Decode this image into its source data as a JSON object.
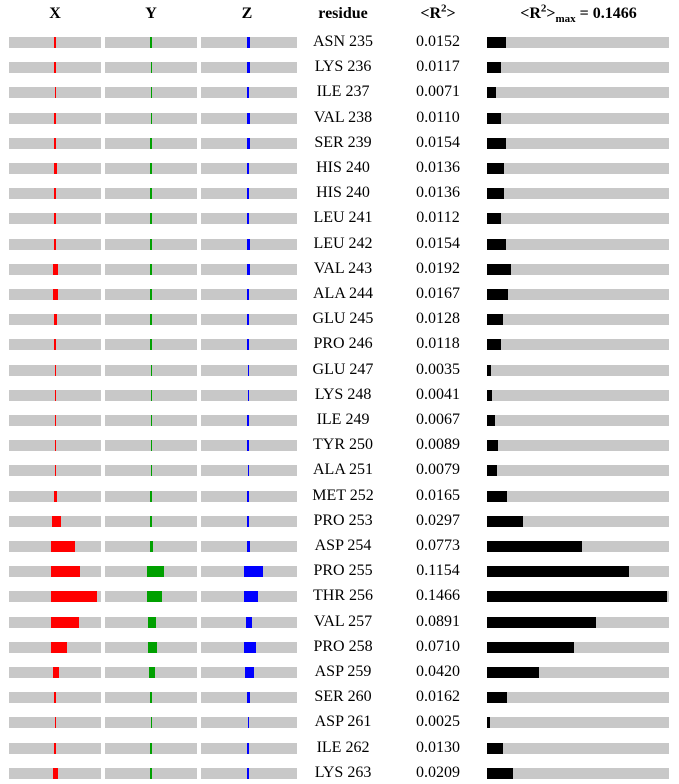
{
  "headers": {
    "x": "X",
    "y": "Y",
    "z": "Z",
    "residue": "residue",
    "r2_open": "<R",
    "r2_sup": "2",
    "r2_close": ">",
    "max_open": "<R",
    "max_sup": "2",
    "max_mid": ">",
    "max_sub": "max",
    "max_tail": " = 0.1466"
  },
  "colors": {
    "x": "#ff0000",
    "y": "#00a000",
    "z": "#0000ff",
    "r2": "#000000",
    "track": "#c8c8c8"
  },
  "chart_data": {
    "type": "bar",
    "r2_max": 0.1466,
    "component_max": 0.95,
    "rows": [
      {
        "residue": "ASN 235",
        "r2": "0.0152",
        "x": 0.03,
        "y": 0.03,
        "z": 0.07
      },
      {
        "residue": "LYS 236",
        "r2": "0.0117",
        "x": 0.03,
        "y": 0.02,
        "z": 0.05
      },
      {
        "residue": "ILE 237",
        "r2": "0.0071",
        "x": 0.02,
        "y": 0.02,
        "z": 0.04
      },
      {
        "residue": "VAL 238",
        "r2": "0.0110",
        "x": 0.03,
        "y": 0.02,
        "z": 0.05
      },
      {
        "residue": "SER 239",
        "r2": "0.0154",
        "x": 0.03,
        "y": 0.04,
        "z": 0.05
      },
      {
        "residue": "HIS 240",
        "r2": "0.0136",
        "x": 0.07,
        "y": 0.03,
        "z": 0.04
      },
      {
        "residue": "HIS 240",
        "r2": "0.0136",
        "x": 0.04,
        "y": 0.03,
        "z": 0.04
      },
      {
        "residue": "LEU 241",
        "r2": "0.0112",
        "x": 0.04,
        "y": 0.03,
        "z": 0.03
      },
      {
        "residue": "LEU 242",
        "r2": "0.0154",
        "x": 0.04,
        "y": 0.04,
        "z": 0.05
      },
      {
        "residue": "VAL 243",
        "r2": "0.0192",
        "x": 0.1,
        "y": 0.04,
        "z": 0.06
      },
      {
        "residue": "ALA 244",
        "r2": "0.0167",
        "x": 0.1,
        "y": 0.03,
        "z": 0.03
      },
      {
        "residue": "GLU 245",
        "r2": "0.0128",
        "x": 0.07,
        "y": 0.03,
        "z": 0.03
      },
      {
        "residue": "PRO 246",
        "r2": "0.0118",
        "x": 0.03,
        "y": 0.03,
        "z": 0.04
      },
      {
        "residue": "GLU 247",
        "r2": "0.0035",
        "x": 0.02,
        "y": 0.02,
        "z": 0.02
      },
      {
        "residue": "LYS 248",
        "r2": "0.0041",
        "x": 0.02,
        "y": 0.02,
        "z": 0.02
      },
      {
        "residue": "ILE 249",
        "r2": "0.0067",
        "x": 0.02,
        "y": 0.02,
        "z": 0.03
      },
      {
        "residue": "TYR 250",
        "r2": "0.0089",
        "x": 0.02,
        "y": 0.02,
        "z": 0.03
      },
      {
        "residue": "ALA 251",
        "r2": "0.0079",
        "x": 0.02,
        "y": 0.02,
        "z": 0.02
      },
      {
        "residue": "MET 252",
        "r2": "0.0165",
        "x": 0.07,
        "y": 0.03,
        "z": 0.03
      },
      {
        "residue": "PRO 253",
        "r2": "0.0297",
        "x": 0.18,
        "y": 0.04,
        "z": 0.03
      },
      {
        "residue": "ASP 254",
        "r2": "0.0773",
        "x": 0.5,
        "y": 0.06,
        "z": 0.06
      },
      {
        "residue": "PRO 255",
        "r2": "0.1154",
        "x": 0.6,
        "y": 0.36,
        "z": 0.37
      },
      {
        "residue": "THR 256",
        "r2": "0.1466",
        "x": 0.95,
        "y": 0.3,
        "z": 0.27
      },
      {
        "residue": "VAL 257",
        "r2": "0.0891",
        "x": 0.58,
        "y": 0.16,
        "z": 0.12
      },
      {
        "residue": "PRO 258",
        "r2": "0.0710",
        "x": 0.33,
        "y": 0.18,
        "z": 0.23
      },
      {
        "residue": "ASP 259",
        "r2": "0.0420",
        "x": 0.12,
        "y": 0.12,
        "z": 0.18
      },
      {
        "residue": "SER 260",
        "r2": "0.0162",
        "x": 0.04,
        "y": 0.03,
        "z": 0.06
      },
      {
        "residue": "ASP 261",
        "r2": "0.0025",
        "x": 0.02,
        "y": 0.02,
        "z": 0.02
      },
      {
        "residue": "ILE 262",
        "r2": "0.0130",
        "x": 0.03,
        "y": 0.03,
        "z": 0.03
      },
      {
        "residue": "LYS 263",
        "r2": "0.0209",
        "x": 0.11,
        "y": 0.03,
        "z": 0.04
      }
    ]
  }
}
